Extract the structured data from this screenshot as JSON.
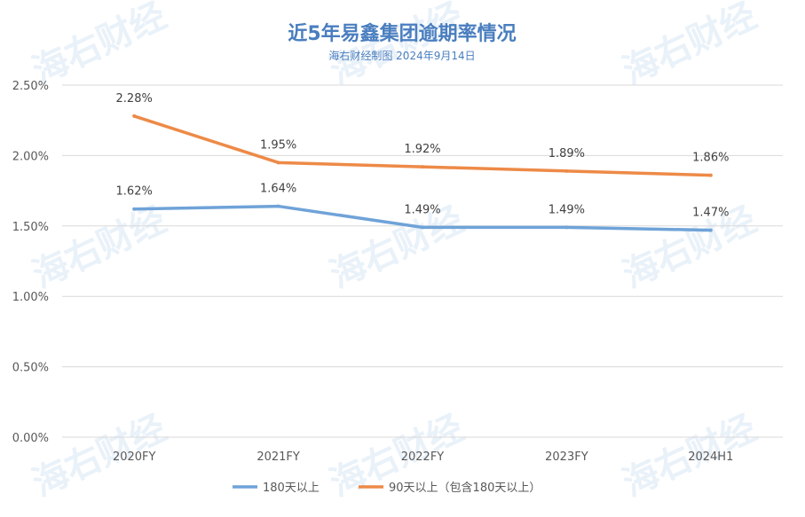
{
  "chart_data": {
    "type": "line",
    "title": "近5年易鑫集团逾期率情况",
    "subtitle": "海右财经制图 2024年9月14日",
    "categories": [
      "2020FY",
      "2021FY",
      "2022FY",
      "2023FY",
      "2024H1"
    ],
    "y_ticks": [
      "0.00%",
      "0.50%",
      "1.00%",
      "1.50%",
      "2.00%",
      "2.50%"
    ],
    "ylim": [
      0,
      2.5
    ],
    "y_unit": "%",
    "grid": true,
    "legend_position": "bottom",
    "series": [
      {
        "name": "180天以上",
        "values": [
          1.62,
          1.64,
          1.49,
          1.49,
          1.47
        ],
        "labels": [
          "1.62%",
          "1.64%",
          "1.49%",
          "1.49%",
          "1.47%"
        ],
        "color": "#6fa3d8"
      },
      {
        "name": "90天以上（包含180天以上）",
        "values": [
          2.28,
          1.95,
          1.92,
          1.89,
          1.86
        ],
        "labels": [
          "2.28%",
          "1.95%",
          "1.92%",
          "1.89%",
          "1.86%"
        ],
        "color": "#ed8a47"
      }
    ]
  },
  "watermark": "海右财经",
  "colors": {
    "title": "#4a7ebf",
    "subtitle": "#4a7ebf",
    "grid": "#d9d9d9"
  }
}
